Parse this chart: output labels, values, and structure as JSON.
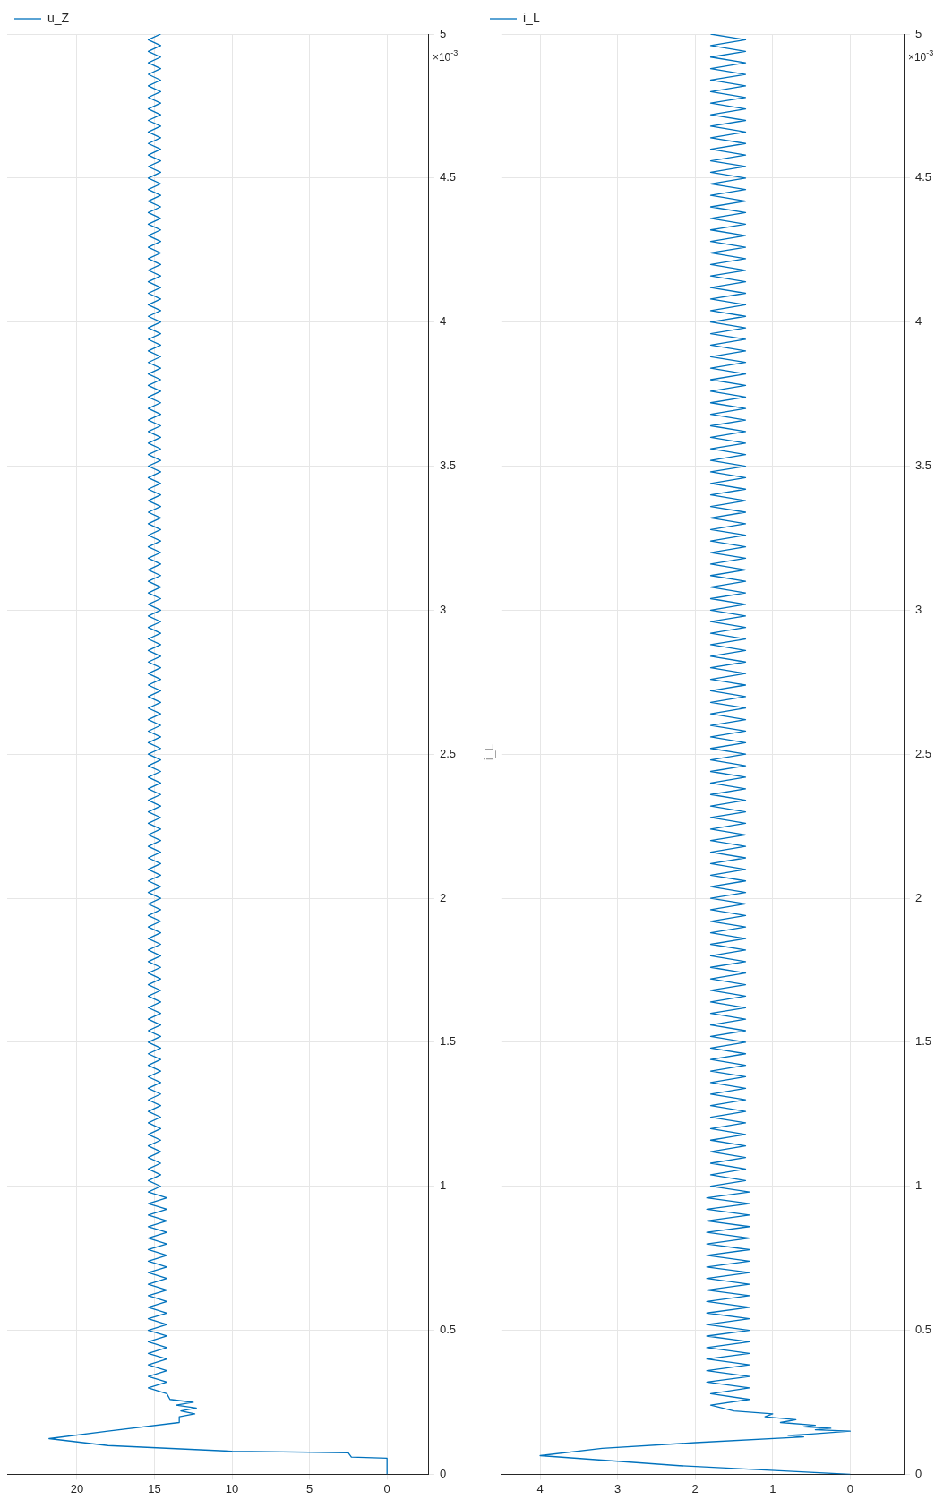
{
  "chart_data": [
    {
      "type": "line",
      "orientation": "horizontal",
      "legend": "top left",
      "grid": true,
      "ylim": [
        0,
        5
      ],
      "yticks": [
        0,
        0.5,
        1,
        1.5,
        2,
        2.5,
        3,
        3.5,
        4,
        4.5,
        5
      ],
      "xlim": [
        24.5,
        -2.7
      ],
      "xticks": [
        20,
        15,
        10,
        5,
        0
      ],
      "annotations": [
        "×10$^{-3}$"
      ],
      "x": [
        0,
        0.056,
        0.06,
        0.075,
        0.08,
        0.1,
        0.124,
        0.15,
        0.18,
        0.2,
        0.21,
        0.22,
        0.23,
        0.24,
        0.25,
        0.26,
        0.28,
        0.3,
        0.32,
        0.34,
        0.36,
        0.38,
        0.4,
        0.42,
        0.44,
        0.46,
        0.48,
        0.5,
        0.52,
        0.54,
        0.56,
        0.58,
        0.6,
        0.62,
        0.64,
        0.66,
        0.68,
        0.7,
        0.72,
        0.74,
        0.76,
        0.78,
        0.8,
        0.82,
        0.84,
        0.86,
        0.88,
        0.9,
        0.92,
        0.94,
        0.96,
        0.98,
        1,
        1.02,
        1.04,
        1.06,
        1.08,
        1.1,
        1.12,
        1.14,
        1.16,
        1.18,
        1.2,
        1.22,
        1.24,
        1.26,
        1.28,
        1.3,
        1.32,
        1.34,
        1.36,
        1.38,
        1.4,
        1.42,
        1.44,
        1.46,
        1.48,
        1.5,
        1.52,
        1.54,
        1.56,
        1.58,
        1.6,
        1.62,
        1.64,
        1.66,
        1.68,
        1.7,
        1.72,
        1.74,
        1.76,
        1.78,
        1.8,
        1.82,
        1.84,
        1.86,
        1.88,
        1.9,
        1.92,
        1.94,
        1.96,
        1.98,
        2,
        2.02,
        2.04,
        2.06,
        2.08,
        2.1,
        2.12,
        2.14,
        2.16,
        2.18,
        2.2,
        2.22,
        2.24,
        2.26,
        2.28,
        2.3,
        2.32,
        2.34,
        2.36,
        2.38,
        2.4,
        2.42,
        2.44,
        2.46,
        2.48,
        2.5,
        2.52,
        2.54,
        2.56,
        2.58,
        2.6,
        2.62,
        2.64,
        2.66,
        2.68,
        2.7,
        2.72,
        2.74,
        2.76,
        2.78,
        2.8,
        2.82,
        2.84,
        2.86,
        2.88,
        2.9,
        2.92,
        2.94,
        2.96,
        2.98,
        3,
        3.02,
        3.04,
        3.06,
        3.08,
        3.1,
        3.12,
        3.14,
        3.16,
        3.18,
        3.2,
        3.22,
        3.24,
        3.26,
        3.28,
        3.3,
        3.32,
        3.34,
        3.36,
        3.38,
        3.4,
        3.42,
        3.44,
        3.46,
        3.48,
        3.5,
        3.52,
        3.54,
        3.56,
        3.58,
        3.6,
        3.62,
        3.64,
        3.66,
        3.68,
        3.7,
        3.72,
        3.74,
        3.76,
        3.78,
        3.8,
        3.82,
        3.84,
        3.86,
        3.88,
        3.9,
        3.92,
        3.94,
        3.96,
        3.98,
        4,
        4.02,
        4.04,
        4.06,
        4.08,
        4.1,
        4.12,
        4.14,
        4.16,
        4.18,
        4.2,
        4.22,
        4.24,
        4.26,
        4.28,
        4.3,
        4.32,
        4.34,
        4.36,
        4.38,
        4.4,
        4.42,
        4.44,
        4.46,
        4.48,
        4.5,
        4.52,
        4.54,
        4.56,
        4.58,
        4.6,
        4.62,
        4.64,
        4.66,
        4.68,
        4.7,
        4.72,
        4.74,
        4.76,
        4.78,
        4.8,
        4.82,
        4.84,
        4.86,
        4.88,
        4.9,
        4.92,
        4.94,
        4.96,
        4.98,
        5
      ],
      "series": [
        {
          "name": "u_Z",
          "color": "#0072bd",
          "values": [
            0,
            0,
            2.3,
            2.5,
            10,
            18,
            21.8,
            18,
            13.4,
            13.4,
            12.4,
            13.3,
            12.3,
            13.6,
            12.5,
            14,
            14.2,
            15.4,
            14.2,
            15.4,
            14.2,
            15.4,
            14.2,
            15.4,
            14.2,
            15.4,
            14.2,
            15.4,
            14.2,
            15.4,
            14.2,
            15.4,
            14.2,
            15.4,
            14.2,
            15.4,
            14.2,
            15.4,
            14.2,
            15.4,
            14.2,
            15.4,
            14.2,
            15.4,
            14.2,
            15.4,
            14.2,
            15.4,
            14.2,
            15.4,
            14.2,
            15.4,
            14.6,
            15.4,
            14.6,
            15.4,
            14.6,
            15.4,
            14.6,
            15.4,
            14.6,
            15.4,
            14.6,
            15.4,
            14.6,
            15.4,
            14.6,
            15.4,
            14.6,
            15.4,
            14.6,
            15.4,
            14.6,
            15.4,
            14.6,
            15.4,
            14.6,
            15.4,
            14.6,
            15.4,
            14.6,
            15.4,
            14.6,
            15.4,
            14.6,
            15.4,
            14.6,
            15.4,
            14.6,
            15.4,
            14.6,
            15.4,
            14.6,
            15.4,
            14.6,
            15.4,
            14.6,
            15.4,
            14.6,
            15.4,
            14.6,
            15.4,
            14.6,
            15.4,
            14.6,
            15.4,
            14.6,
            15.4,
            14.6,
            15.4,
            14.6,
            15.4,
            14.6,
            15.4,
            14.6,
            15.4,
            14.6,
            15.4,
            14.6,
            15.4,
            14.6,
            15.4,
            14.6,
            15.4,
            14.6,
            15.4,
            14.6,
            15.4,
            14.6,
            15.4,
            14.6,
            15.4,
            14.6,
            15.4,
            14.6,
            15.4,
            14.6,
            15.4,
            14.6,
            15.4,
            14.6,
            15.4,
            14.6,
            15.4,
            14.6,
            15.4,
            14.6,
            15.4,
            14.6,
            15.4,
            14.6,
            15.4,
            14.6,
            15.4,
            14.6,
            15.4,
            14.6,
            15.4,
            14.6,
            15.4,
            14.6,
            15.4,
            14.6,
            15.4,
            14.6,
            15.4,
            14.6,
            15.4,
            14.6,
            15.4,
            14.6,
            15.4,
            14.6,
            15.4,
            14.6,
            15.4,
            14.6,
            15.4,
            14.6,
            15.4,
            14.6,
            15.4,
            14.6,
            15.4,
            14.6,
            15.4,
            14.6,
            15.4,
            14.6,
            15.4,
            14.6,
            15.4,
            14.6,
            15.4,
            14.6,
            15.4,
            14.6,
            15.4,
            14.6,
            15.4,
            14.6,
            15.4,
            14.6,
            15.4,
            14.6,
            15.4,
            14.6,
            15.4,
            14.6,
            15.4,
            14.6,
            15.4,
            14.6,
            15.4,
            14.6,
            15.4,
            14.6,
            15.4,
            14.6,
            15.4,
            14.6,
            15.4,
            14.6,
            15.4,
            14.6,
            15.4,
            14.6,
            15.4,
            14.6,
            15.4,
            14.6,
            15.4,
            14.6,
            15.4,
            14.6,
            15.4,
            14.6,
            15.4,
            14.6,
            15.4,
            14.6,
            15.4,
            14.6,
            15.4,
            14.6,
            15.4,
            14.6,
            15.4,
            14.6,
            15.4,
            14.6,
            15.4,
            14.6
          ]
        }
      ]
    },
    {
      "type": "line",
      "orientation": "horizontal",
      "title": "i_L",
      "legend": "top left",
      "grid": true,
      "ylim": [
        0,
        5
      ],
      "yticks": [
        0,
        0.5,
        1,
        1.5,
        2,
        2.5,
        3,
        3.5,
        4,
        4.5,
        5
      ],
      "xlim": [
        4.5,
        -0.7
      ],
      "xticks": [
        4,
        3,
        2,
        1,
        0
      ],
      "annotations": [
        "×10$^{-3}$"
      ],
      "x": [
        0,
        0.03,
        0.065,
        0.09,
        0.11,
        0.13,
        0.135,
        0.14,
        0.15,
        0.155,
        0.16,
        0.165,
        0.17,
        0.18,
        0.19,
        0.2,
        0.21,
        0.22,
        0.24,
        0.26,
        0.28,
        0.3,
        0.32,
        0.34,
        0.36,
        0.38,
        0.4,
        0.42,
        0.44,
        0.46,
        0.48,
        0.5,
        0.52,
        0.54,
        0.56,
        0.58,
        0.6,
        0.62,
        0.64,
        0.66,
        0.68,
        0.7,
        0.72,
        0.74,
        0.76,
        0.78,
        0.8,
        0.82,
        0.84,
        0.86,
        0.88,
        0.9,
        0.92,
        0.94,
        0.96,
        0.98,
        1,
        1.02,
        1.04,
        1.06,
        1.08,
        1.1,
        1.12,
        1.14,
        1.16,
        1.18,
        1.2,
        1.22,
        1.24,
        1.26,
        1.28,
        1.3,
        1.32,
        1.34,
        1.36,
        1.38,
        1.4,
        1.42,
        1.44,
        1.46,
        1.48,
        1.5,
        1.52,
        1.54,
        1.56,
        1.58,
        1.6,
        1.62,
        1.64,
        1.66,
        1.68,
        1.7,
        1.72,
        1.74,
        1.76,
        1.78,
        1.8,
        1.82,
        1.84,
        1.86,
        1.88,
        1.9,
        1.92,
        1.94,
        1.96,
        1.98,
        2,
        2.02,
        2.04,
        2.06,
        2.08,
        2.1,
        2.12,
        2.14,
        2.16,
        2.18,
        2.2,
        2.22,
        2.24,
        2.26,
        2.28,
        2.3,
        2.32,
        2.34,
        2.36,
        2.38,
        2.4,
        2.42,
        2.44,
        2.46,
        2.48,
        2.5,
        2.52,
        2.54,
        2.56,
        2.58,
        2.6,
        2.62,
        2.64,
        2.66,
        2.68,
        2.7,
        2.72,
        2.74,
        2.76,
        2.78,
        2.8,
        2.82,
        2.84,
        2.86,
        2.88,
        2.9,
        2.92,
        2.94,
        2.96,
        2.98,
        3,
        3.02,
        3.04,
        3.06,
        3.08,
        3.1,
        3.12,
        3.14,
        3.16,
        3.18,
        3.2,
        3.22,
        3.24,
        3.26,
        3.28,
        3.3,
        3.32,
        3.34,
        3.36,
        3.38,
        3.4,
        3.42,
        3.44,
        3.46,
        3.48,
        3.5,
        3.52,
        3.54,
        3.56,
        3.58,
        3.6,
        3.62,
        3.64,
        3.66,
        3.68,
        3.7,
        3.72,
        3.74,
        3.76,
        3.78,
        3.8,
        3.82,
        3.84,
        3.86,
        3.88,
        3.9,
        3.92,
        3.94,
        3.96,
        3.98,
        4,
        4.02,
        4.04,
        4.06,
        4.08,
        4.1,
        4.12,
        4.14,
        4.16,
        4.18,
        4.2,
        4.22,
        4.24,
        4.26,
        4.28,
        4.3,
        4.32,
        4.34,
        4.36,
        4.38,
        4.4,
        4.42,
        4.44,
        4.46,
        4.48,
        4.5,
        4.52,
        4.54,
        4.56,
        4.58,
        4.6,
        4.62,
        4.64,
        4.66,
        4.68,
        4.7,
        4.72,
        4.74,
        4.76,
        4.78,
        4.8,
        4.82,
        4.84,
        4.86,
        4.88,
        4.9,
        4.92,
        4.94,
        4.96,
        4.98,
        5
      ],
      "series": [
        {
          "name": "i_L",
          "color": "#0072bd",
          "values": [
            0,
            2.2,
            4,
            3.2,
            2,
            0.6,
            0.8,
            0.5,
            0,
            0.45,
            0.25,
            0.6,
            0.45,
            0.9,
            0.7,
            1.1,
            1,
            1.5,
            1.8,
            1.3,
            1.8,
            1.3,
            1.85,
            1.3,
            1.85,
            1.3,
            1.85,
            1.3,
            1.85,
            1.3,
            1.85,
            1.3,
            1.85,
            1.3,
            1.85,
            1.3,
            1.85,
            1.3,
            1.85,
            1.3,
            1.85,
            1.3,
            1.85,
            1.3,
            1.85,
            1.3,
            1.85,
            1.3,
            1.85,
            1.3,
            1.85,
            1.3,
            1.85,
            1.3,
            1.85,
            1.3,
            1.8,
            1.35,
            1.8,
            1.35,
            1.8,
            1.35,
            1.8,
            1.35,
            1.8,
            1.35,
            1.8,
            1.35,
            1.8,
            1.35,
            1.8,
            1.35,
            1.8,
            1.35,
            1.8,
            1.35,
            1.8,
            1.35,
            1.8,
            1.35,
            1.8,
            1.35,
            1.8,
            1.35,
            1.8,
            1.35,
            1.8,
            1.35,
            1.8,
            1.35,
            1.8,
            1.35,
            1.8,
            1.35,
            1.8,
            1.35,
            1.8,
            1.35,
            1.8,
            1.35,
            1.8,
            1.35,
            1.8,
            1.35,
            1.8,
            1.35,
            1.8,
            1.35,
            1.8,
            1.35,
            1.8,
            1.35,
            1.8,
            1.35,
            1.8,
            1.35,
            1.8,
            1.35,
            1.8,
            1.35,
            1.8,
            1.35,
            1.8,
            1.35,
            1.8,
            1.35,
            1.8,
            1.35,
            1.8,
            1.35,
            1.8,
            1.35,
            1.8,
            1.35,
            1.8,
            1.35,
            1.8,
            1.35,
            1.8,
            1.35,
            1.8,
            1.35,
            1.8,
            1.35,
            1.8,
            1.35,
            1.8,
            1.35,
            1.8,
            1.35,
            1.8,
            1.35,
            1.8,
            1.35,
            1.8,
            1.35,
            1.8,
            1.35,
            1.8,
            1.35,
            1.8,
            1.35,
            1.8,
            1.35,
            1.8,
            1.35,
            1.8,
            1.35,
            1.8,
            1.35,
            1.8,
            1.35,
            1.8,
            1.35,
            1.8,
            1.35,
            1.8,
            1.35,
            1.8,
            1.35,
            1.8,
            1.35,
            1.8,
            1.35,
            1.8,
            1.35,
            1.8,
            1.35,
            1.8,
            1.35,
            1.8,
            1.35,
            1.8,
            1.35,
            1.8,
            1.35,
            1.8,
            1.35,
            1.8,
            1.35,
            1.8,
            1.35,
            1.8,
            1.35,
            1.8,
            1.35,
            1.8,
            1.35,
            1.8,
            1.35,
            1.8,
            1.35,
            1.8,
            1.35,
            1.8,
            1.35,
            1.8,
            1.35,
            1.8,
            1.35,
            1.8,
            1.35,
            1.8,
            1.35,
            1.8,
            1.35,
            1.8,
            1.35,
            1.8,
            1.35,
            1.8,
            1.35,
            1.8,
            1.35,
            1.8,
            1.35,
            1.8,
            1.35,
            1.8,
            1.35,
            1.8,
            1.35,
            1.8,
            1.35,
            1.8,
            1.35,
            1.8,
            1.35,
            1.8,
            1.35,
            1.8,
            1.35,
            1.8,
            1.35,
            1.8,
            1.35,
            1.8
          ]
        }
      ]
    }
  ]
}
